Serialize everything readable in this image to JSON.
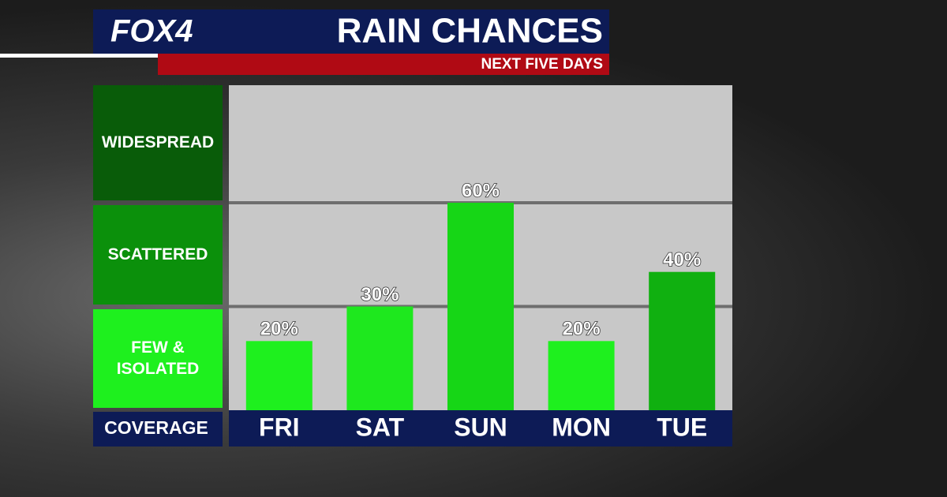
{
  "logo": "FOX4",
  "chart_data": {
    "type": "bar",
    "title": "RAIN CHANCES",
    "subtitle": "NEXT FIVE DAYS",
    "axis_label": "COVERAGE",
    "categories": [
      "FRI",
      "SAT",
      "SUN",
      "MON",
      "TUE"
    ],
    "values": [
      20,
      30,
      60,
      20,
      40
    ],
    "value_labels": [
      "20%",
      "30%",
      "60%",
      "20%",
      "40%"
    ],
    "colors": [
      "#1ef01e",
      "#1ee81e",
      "#16d616",
      "#1ef01e",
      "#10b010"
    ],
    "ylim": [
      0,
      94
    ],
    "bands": [
      {
        "label": "FEW & ISOLATED",
        "range": [
          0,
          30
        ],
        "color": "#1ef01e"
      },
      {
        "label": "SCATTERED",
        "range": [
          30,
          60
        ],
        "color": "#0b900b"
      },
      {
        "label": "WIDESPREAD",
        "range": [
          60,
          94
        ],
        "color": "#095c09"
      }
    ],
    "grid": true
  }
}
